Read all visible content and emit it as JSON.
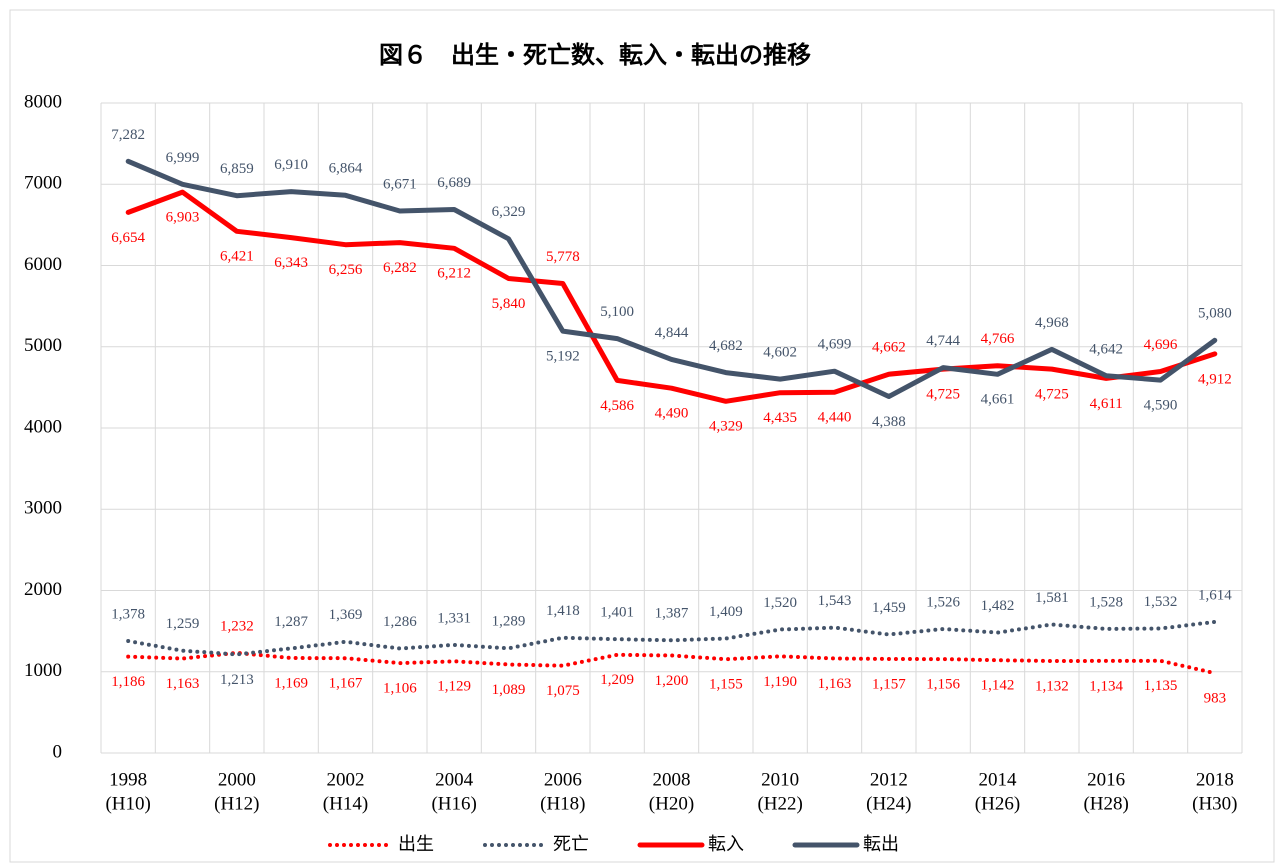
{
  "chart_data": {
    "type": "line",
    "title": "図６　出生・死亡数、転入・転出の推移",
    "categories": [
      "1998",
      null,
      "2000",
      null,
      "2002",
      null,
      "2004",
      null,
      "2006",
      null,
      "2008",
      null,
      "2010",
      null,
      "2012",
      null,
      "2014",
      null,
      "2016",
      null,
      "2018"
    ],
    "category_eras": [
      "(H10)",
      null,
      "(H12)",
      null,
      "(H14)",
      null,
      "(H16)",
      null,
      "(H18)",
      null,
      "(H20)",
      null,
      "(H22)",
      null,
      "(H24)",
      null,
      "(H26)",
      null,
      "(H28)",
      null,
      "(H30)"
    ],
    "ylim": [
      0,
      8000
    ],
    "yticks": [
      0,
      1000,
      2000,
      3000,
      4000,
      5000,
      6000,
      7000,
      8000
    ],
    "grid": true,
    "legend": "bottom",
    "series": [
      {
        "name": "出生",
        "color": "#ff0000",
        "dash": "dotted",
        "values": [
          1186,
          1163,
          1232,
          1169,
          1167,
          1106,
          1129,
          1089,
          1075,
          1209,
          1200,
          1155,
          1190,
          1163,
          1157,
          1156,
          1142,
          1132,
          1134,
          1135,
          983
        ],
        "value_labels": [
          "1,186",
          "1,163",
          "1,232",
          "1,169",
          "1,167",
          "1,106",
          "1,129",
          "1,089",
          "1,075",
          "1,209",
          "1,200",
          "1,155",
          "1,190",
          "1,163",
          "1,157",
          "1,156",
          "1,142",
          "1,132",
          "1,134",
          "1,135",
          "983"
        ]
      },
      {
        "name": "死亡",
        "color": "#44546a",
        "dash": "dotted",
        "values": [
          1378,
          1259,
          1213,
          1287,
          1369,
          1286,
          1331,
          1289,
          1418,
          1401,
          1387,
          1409,
          1520,
          1543,
          1459,
          1526,
          1482,
          1581,
          1528,
          1532,
          1614
        ],
        "value_labels": [
          "1,378",
          "1,259",
          "1,213",
          "1,287",
          "1,369",
          "1,286",
          "1,331",
          "1,289",
          "1,418",
          "1,401",
          "1,387",
          "1,409",
          "1,520",
          "1,543",
          "1,459",
          "1,526",
          "1,482",
          "1,581",
          "1,528",
          "1,532",
          "1,614"
        ]
      },
      {
        "name": "転入",
        "color": "#ff0000",
        "dash": "solid",
        "values": [
          6654,
          6903,
          6421,
          6343,
          6256,
          6282,
          6212,
          5840,
          5778,
          4586,
          4490,
          4329,
          4435,
          4440,
          4662,
          4725,
          4766,
          4725,
          4611,
          4696,
          4912
        ],
        "value_labels": [
          "6,654",
          "6,903",
          "6,421",
          "6,343",
          "6,256",
          "6,282",
          "6,212",
          "5,840",
          "5,778",
          "4,586",
          "4,490",
          "4,329",
          "4,435",
          "4,440",
          "4,662",
          "4,725",
          "4,766",
          "4,725",
          "4,611",
          "4,696",
          "4,912"
        ]
      },
      {
        "name": "転出",
        "color": "#44546a",
        "dash": "solid",
        "values": [
          7282,
          6999,
          6859,
          6910,
          6864,
          6671,
          6689,
          6329,
          5192,
          5100,
          4844,
          4682,
          4602,
          4699,
          4388,
          4744,
          4661,
          4968,
          4642,
          4590,
          5080
        ],
        "value_labels": [
          "7,282",
          "6,999",
          "6,859",
          "6,910",
          "6,864",
          "6,671",
          "6,689",
          "6,329",
          "5,192",
          "5,100",
          "4,844",
          "4,682",
          "4,602",
          "4,699",
          "4,388",
          "4,744",
          "4,661",
          "4,968",
          "4,642",
          "4,590",
          "5,080"
        ]
      }
    ]
  }
}
